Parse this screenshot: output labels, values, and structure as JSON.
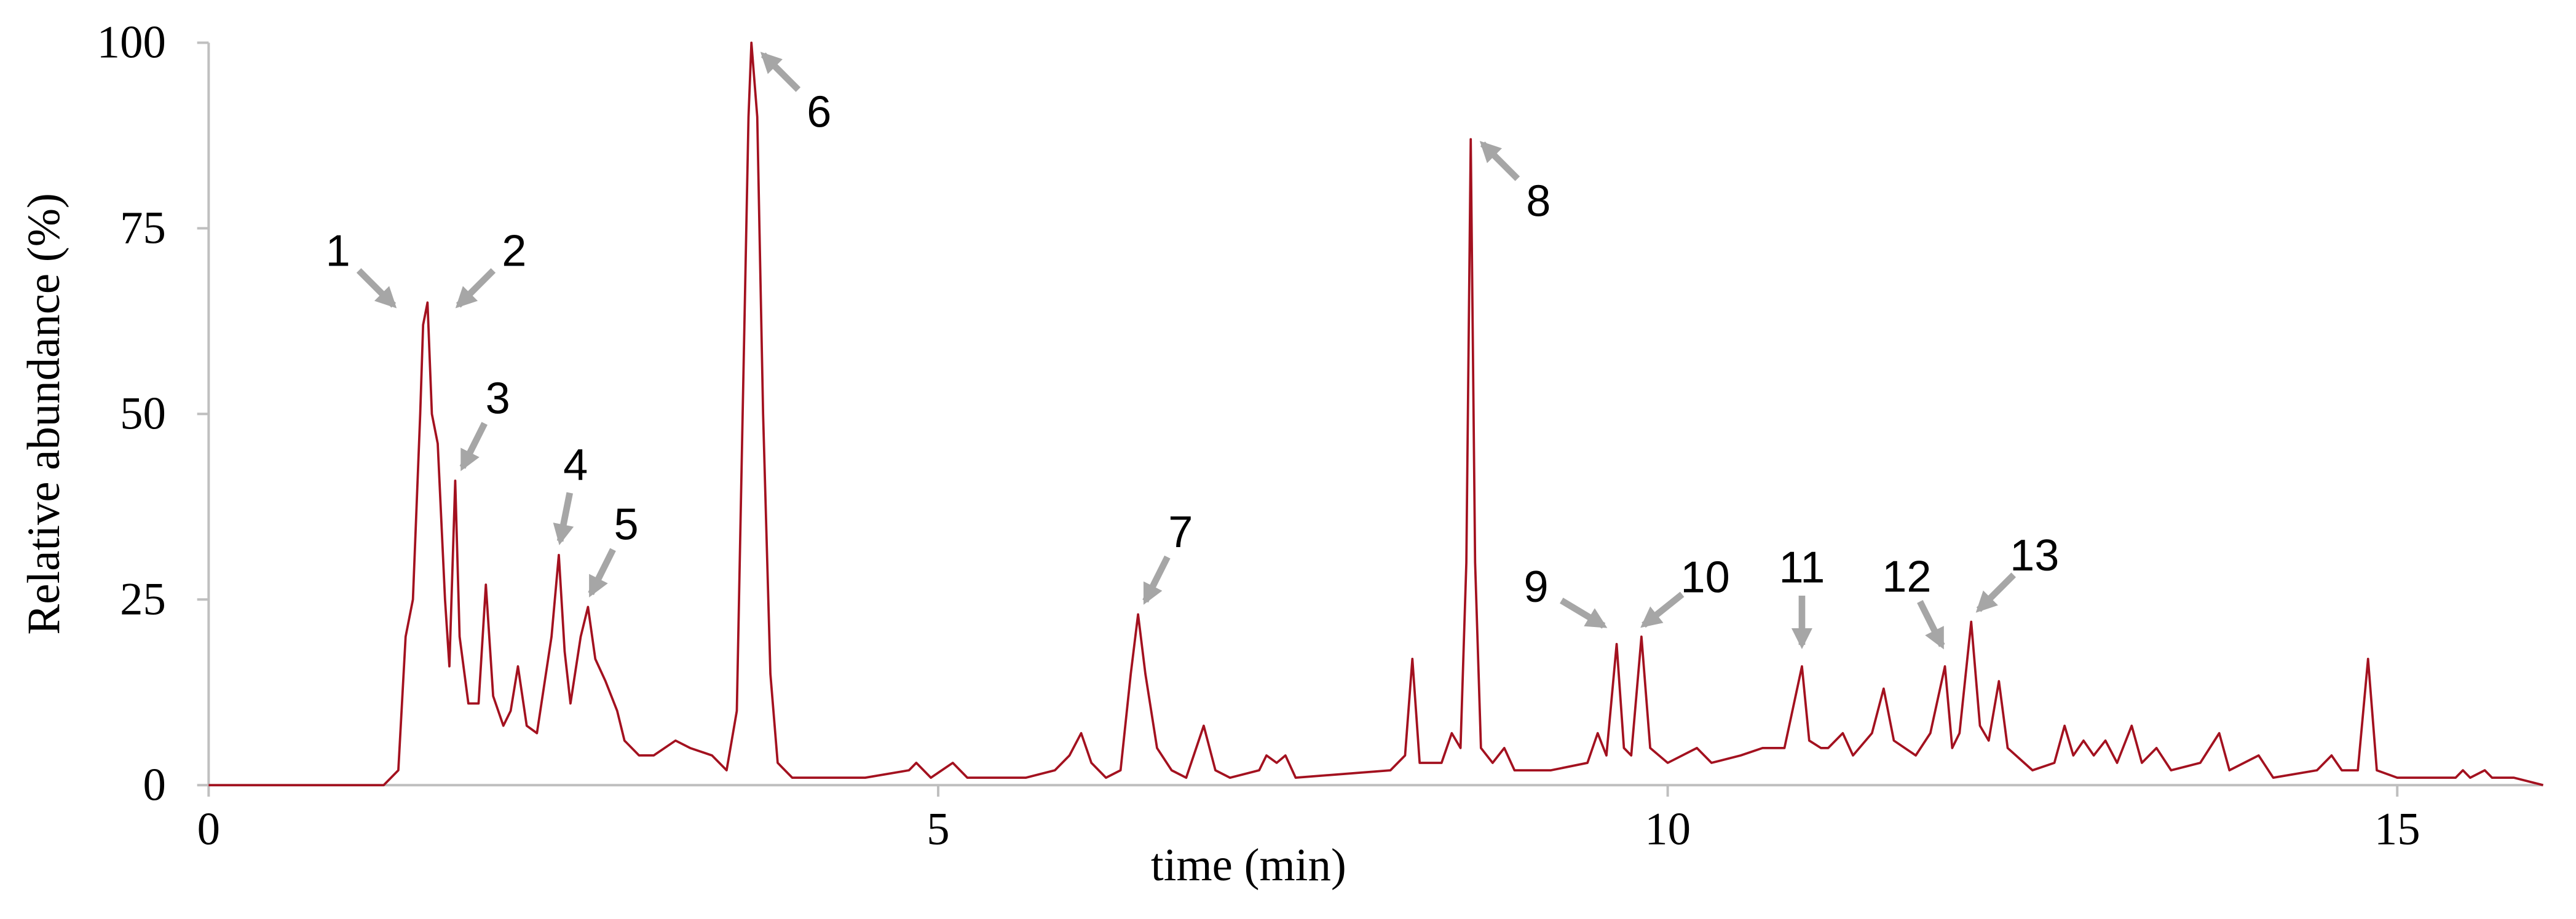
{
  "chart_data": {
    "type": "line",
    "x_label": "time (min)",
    "y_label": "Relative abundance (%)",
    "color": "#a3111f",
    "xlim": [
      0,
      16
    ],
    "xticks": [
      0,
      5,
      10,
      15
    ],
    "ylim": [
      0,
      100
    ],
    "yticks": [
      0,
      25,
      50,
      75,
      100
    ],
    "grid": false,
    "x": [
      0,
      1.2,
      1.3,
      1.35,
      1.4,
      1.45,
      1.47,
      1.5,
      1.53,
      1.57,
      1.62,
      1.65,
      1.69,
      1.72,
      1.78,
      1.85,
      1.9,
      1.95,
      2.02,
      2.07,
      2.12,
      2.18,
      2.25,
      2.35,
      2.4,
      2.44,
      2.48,
      2.55,
      2.6,
      2.65,
      2.72,
      2.8,
      2.85,
      2.95,
      3.05,
      3.2,
      3.3,
      3.45,
      3.55,
      3.62,
      3.66,
      3.7,
      3.72,
      3.76,
      3.8,
      3.85,
      3.9,
      4.0,
      4.5,
      4.8,
      4.85,
      4.95,
      5.1,
      5.2,
      5.6,
      5.8,
      5.9,
      5.98,
      6.05,
      6.15,
      6.25,
      6.32,
      6.37,
      6.42,
      6.5,
      6.6,
      6.7,
      6.82,
      6.9,
      7.0,
      7.2,
      7.25,
      7.32,
      7.38,
      7.45,
      8.1,
      8.2,
      8.25,
      8.3,
      8.45,
      8.52,
      8.58,
      8.62,
      8.65,
      8.68,
      8.72,
      8.8,
      8.88,
      8.95,
      9.2,
      9.45,
      9.52,
      9.58,
      9.65,
      9.7,
      9.75,
      9.82,
      9.88,
      10.0,
      10.2,
      10.3,
      10.5,
      10.65,
      10.8,
      10.92,
      10.97,
      11.05,
      11.1,
      11.2,
      11.27,
      11.4,
      11.48,
      11.55,
      11.7,
      11.8,
      11.9,
      11.95,
      12.0,
      12.08,
      12.14,
      12.2,
      12.27,
      12.33,
      12.5,
      12.65,
      12.72,
      12.78,
      12.85,
      12.92,
      13.0,
      13.08,
      13.18,
      13.25,
      13.35,
      13.45,
      13.65,
      13.78,
      13.85,
      14.05,
      14.15,
      14.45,
      14.55,
      14.62,
      14.73,
      14.8,
      14.86,
      15.0,
      15.4,
      15.45,
      15.5,
      15.6,
      15.65,
      15.8,
      15.9,
      16
    ],
    "values": [
      0,
      0,
      2,
      20,
      25,
      50,
      62,
      65,
      50,
      46,
      25,
      16,
      41,
      20,
      11,
      11,
      27,
      12,
      8,
      10,
      16,
      8,
      7,
      20,
      31,
      18,
      11,
      20,
      24,
      17,
      14,
      10,
      6,
      4,
      4,
      6,
      5,
      4,
      2,
      10,
      50,
      90,
      100,
      90,
      50,
      15,
      3,
      1,
      1,
      2,
      3,
      1,
      3,
      1,
      1,
      2,
      4,
      7,
      3,
      1,
      2,
      15,
      23,
      15,
      5,
      2,
      1,
      8,
      2,
      1,
      2,
      4,
      3,
      4,
      1,
      2,
      4,
      17,
      3,
      3,
      7,
      5,
      30,
      87,
      30,
      5,
      3,
      5,
      2,
      2,
      3,
      7,
      4,
      19,
      5,
      4,
      20,
      5,
      3,
      5,
      3,
      4,
      5,
      5,
      16,
      6,
      5,
      5,
      7,
      4,
      7,
      13,
      6,
      4,
      7,
      16,
      5,
      7,
      22,
      8,
      6,
      14,
      5,
      2,
      3,
      8,
      4,
      6,
      4,
      6,
      3,
      8,
      3,
      5,
      2,
      3,
      7,
      2,
      4,
      1,
      2,
      4,
      2,
      2,
      17,
      2,
      1,
      1,
      2,
      1,
      2,
      1,
      1,
      0.5,
      0
    ],
    "annotations": [
      {
        "text": "1",
        "x": 1.3,
        "y": 64
      },
      {
        "text": "2",
        "x": 1.68,
        "y": 64
      },
      {
        "text": "3",
        "x": 1.72,
        "y": 42
      },
      {
        "text": "4",
        "x": 2.4,
        "y": 32
      },
      {
        "text": "5",
        "x": 2.6,
        "y": 25
      },
      {
        "text": "6",
        "x": 3.77,
        "y": 99
      },
      {
        "text": "7",
        "x": 6.4,
        "y": 24
      },
      {
        "text": "8",
        "x": 8.7,
        "y": 87
      },
      {
        "text": "9",
        "x": 9.6,
        "y": 21
      },
      {
        "text": "10",
        "x": 9.8,
        "y": 21
      },
      {
        "text": "11",
        "x": 10.92,
        "y": 18
      },
      {
        "text": "12",
        "x": 11.9,
        "y": 18
      },
      {
        "text": "13",
        "x": 12.1,
        "y": 23
      }
    ]
  }
}
